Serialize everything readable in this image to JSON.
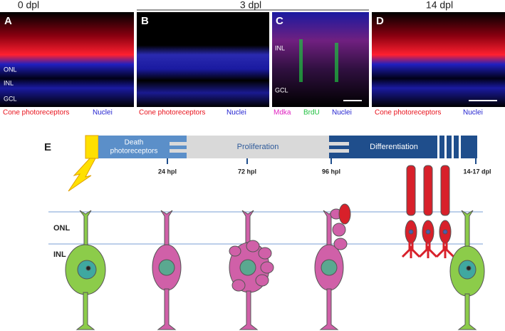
{
  "figure": {
    "time_headers": [
      "0 dpl",
      "3 dpl",
      "14 dpl"
    ],
    "panels": [
      {
        "letter": "A",
        "layers": [
          "ONL",
          "INL",
          "GCL"
        ],
        "captions": [
          "Cone photoreceptors",
          "Nuclei"
        ]
      },
      {
        "letter": "B",
        "captions": [
          "Cone photoreceptors",
          "Nuclei"
        ]
      },
      {
        "letter": "C",
        "layers": [
          "INL",
          "GCL"
        ],
        "captions": [
          "Mdka",
          "BrdU",
          "Nuclei"
        ]
      },
      {
        "letter": "D",
        "captions": [
          "Cone photoreceptors",
          "Nuclei"
        ]
      }
    ],
    "schematic": {
      "letter": "E",
      "phases": [
        {
          "lines": [
            "Death",
            "photoreceptors"
          ]
        },
        {
          "lines": [
            "Proliferation"
          ]
        },
        {
          "lines": [
            "Differentiation"
          ]
        }
      ],
      "timepoints": [
        "24 hpl",
        "72 hpl",
        "96 hpl",
        "14-17 dpl"
      ],
      "layers": [
        "ONL",
        "INL"
      ]
    }
  }
}
